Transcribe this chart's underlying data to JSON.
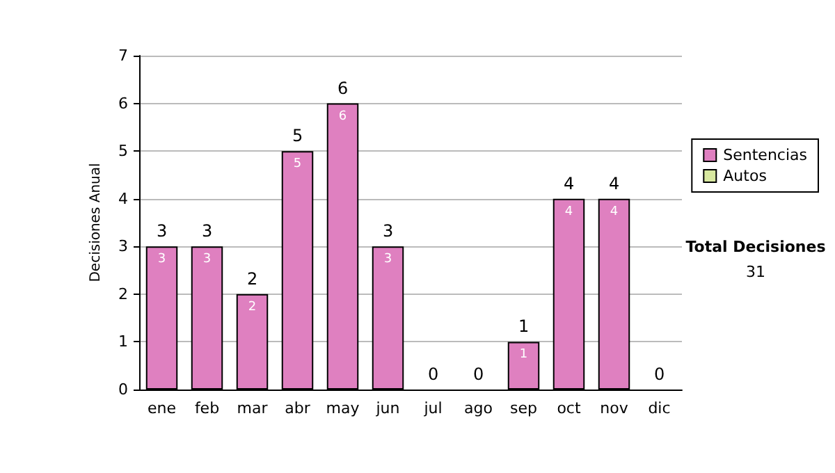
{
  "chart_data": {
    "type": "bar",
    "ylabel": "Decisiones Anual",
    "categories": [
      "ene",
      "feb",
      "mar",
      "abr",
      "may",
      "jun",
      "jul",
      "ago",
      "sep",
      "oct",
      "nov",
      "dic"
    ],
    "series": [
      {
        "name": "Sentencias",
        "color": "#df80c0",
        "values": [
          3,
          3,
          2,
          5,
          6,
          3,
          0,
          0,
          1,
          4,
          4,
          0
        ],
        "value_labels": [
          "3",
          "3",
          "2",
          "5",
          "6",
          "3",
          null,
          null,
          "1",
          "4",
          "4",
          null
        ]
      },
      {
        "name": "Autos",
        "color": "#d8e8a0",
        "values": [
          0,
          0,
          0,
          0,
          0,
          0,
          0,
          0,
          0,
          0,
          0,
          0
        ]
      }
    ],
    "stacked": true,
    "totals": [
      "3",
      "3",
      "2",
      "5",
      "6",
      "3",
      "0",
      "0",
      "1",
      "4",
      "4",
      "0"
    ],
    "ylim": [
      0,
      7
    ],
    "yticks": [
      0,
      1,
      2,
      3,
      4,
      5,
      6,
      7
    ],
    "grid": "y",
    "legend": "right",
    "annotations": [
      "Total Decisiones",
      "31"
    ]
  }
}
